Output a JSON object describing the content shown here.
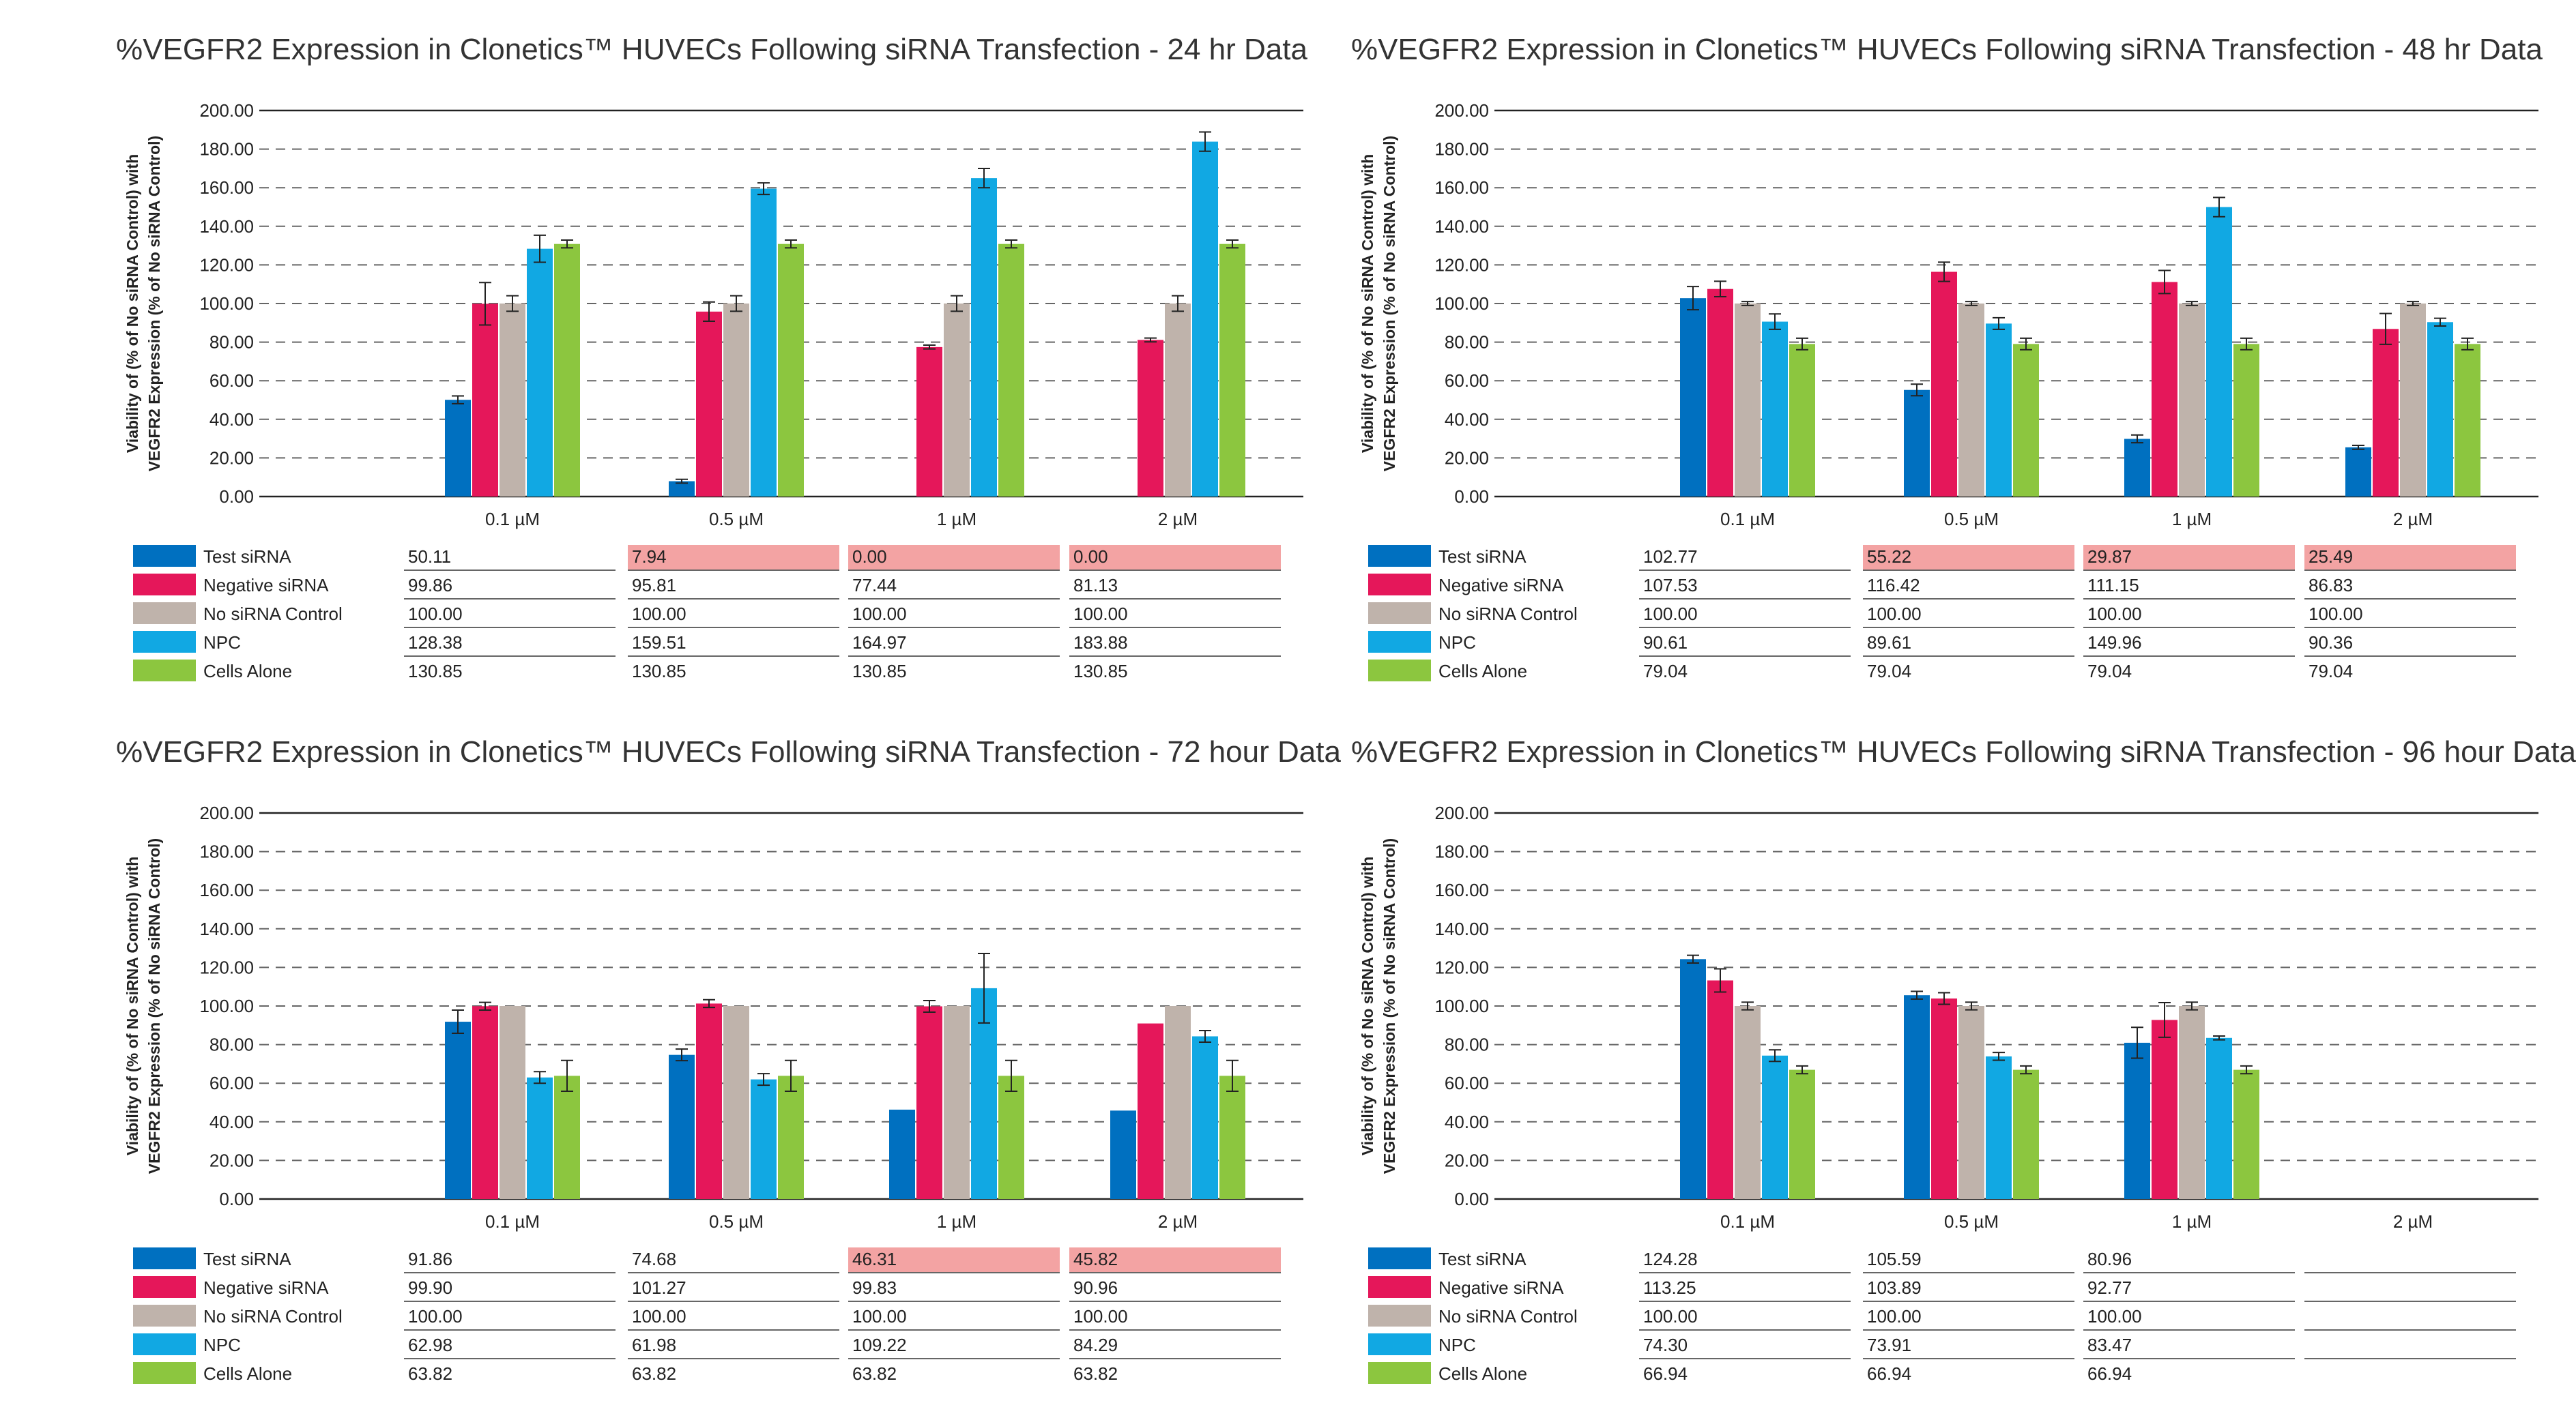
{
  "categories": [
    "0.1 µM",
    "0.5 µM",
    "1 µM",
    "2 µM"
  ],
  "series_names": [
    "Test siRNA",
    "Negative siRNA",
    "No siRNA Control",
    "NPC",
    "Cells Alone"
  ],
  "colors": {
    "Test siRNA": "#0070c0",
    "Negative siRNA": "#e5175a",
    "No siRNA Control": "#bfb3ab",
    "NPC": "#11a8e3",
    "Cells Alone": "#8cc63f",
    "highlight": "#f3a3a3",
    "grid": "#666666"
  },
  "y_axis_title": [
    "Viability of (% of No siRNA Control) with",
    "VEGFR2 Expression (% of No siRNA Control)"
  ],
  "y_ticks": [
    "0.00",
    "20.00",
    "40.00",
    "60.00",
    "80.00",
    "100.00",
    "120.00",
    "140.00",
    "160.00",
    "180.00",
    "200.00"
  ],
  "chart_data": [
    {
      "type": "bar",
      "title": "%VEGFR2 Expression in Clonetics™ HUVECs Following siRNA Transfection - 24 hr Data",
      "categories": [
        "0.1 µM",
        "0.5 µM",
        "1 µM",
        "2 µM"
      ],
      "ylim": [
        0,
        200
      ],
      "grid": true,
      "series": [
        {
          "name": "Test siRNA",
          "values": [
            50.11,
            7.94,
            0.0,
            0.0
          ],
          "err": [
            2,
            1,
            0,
            0
          ],
          "labels": [
            "50.11",
            "7.94",
            "0.00",
            "0.00"
          ]
        },
        {
          "name": "Negative siRNA",
          "values": [
            99.86,
            95.81,
            77.44,
            81.13
          ],
          "err": [
            11,
            5,
            1,
            1
          ],
          "labels": [
            "99.86",
            "95.81",
            "77.44",
            "81.13"
          ]
        },
        {
          "name": "No siRNA Control",
          "values": [
            100.0,
            100.0,
            100.0,
            100.0
          ],
          "err": [
            4,
            4,
            4,
            4
          ],
          "labels": [
            "100.00",
            "100.00",
            "100.00",
            "100.00"
          ]
        },
        {
          "name": "NPC",
          "values": [
            128.38,
            159.51,
            164.97,
            183.88
          ],
          "err": [
            7,
            3,
            5,
            5
          ],
          "labels": [
            "128.38",
            "159.51",
            "164.97",
            "183.88"
          ]
        },
        {
          "name": "Cells Alone",
          "values": [
            130.85,
            130.85,
            130.85,
            130.85
          ],
          "err": [
            2,
            2,
            2,
            2
          ],
          "labels": [
            "130.85",
            "130.85",
            "130.85",
            "130.85"
          ]
        }
      ],
      "highlight": [
        [
          false,
          true,
          true,
          true
        ],
        [
          false,
          false,
          false,
          false
        ],
        [
          false,
          false,
          false,
          false
        ],
        [
          false,
          false,
          false,
          false
        ],
        [
          false,
          false,
          false,
          false
        ]
      ]
    },
    {
      "type": "bar",
      "title": "%VEGFR2 Expression in Clonetics™ HUVECs Following siRNA Transfection - 48 hr Data",
      "categories": [
        "0.1 µM",
        "0.5 µM",
        "1 µM",
        "2 µM"
      ],
      "ylim": [
        0,
        200
      ],
      "grid": true,
      "series": [
        {
          "name": "Test siRNA",
          "values": [
            102.77,
            55.22,
            29.87,
            25.49
          ],
          "err": [
            6,
            3,
            2,
            1
          ],
          "labels": [
            "102.77",
            "55.22",
            "29.87",
            "25.49"
          ]
        },
        {
          "name": "Negative siRNA",
          "values": [
            107.53,
            116.42,
            111.15,
            86.83
          ],
          "err": [
            4,
            5,
            6,
            8
          ],
          "labels": [
            "107.53",
            "116.42",
            "111.15",
            "86.83"
          ]
        },
        {
          "name": "No siRNA Control",
          "values": [
            100.0,
            100.0,
            100.0,
            100.0
          ],
          "err": [
            1,
            1,
            1,
            1
          ],
          "labels": [
            "100.00",
            "100.00",
            "100.00",
            "100.00"
          ]
        },
        {
          "name": "NPC",
          "values": [
            90.61,
            89.61,
            149.96,
            90.36
          ],
          "err": [
            4,
            3,
            5,
            2
          ],
          "labels": [
            "90.61",
            "89.61",
            "149.96",
            "90.36"
          ]
        },
        {
          "name": "Cells Alone",
          "values": [
            79.04,
            79.04,
            79.04,
            79.04
          ],
          "err": [
            3,
            3,
            3,
            3
          ],
          "labels": [
            "79.04",
            "79.04",
            "79.04",
            "79.04"
          ]
        }
      ],
      "highlight": [
        [
          false,
          true,
          true,
          true
        ],
        [
          false,
          false,
          false,
          false
        ],
        [
          false,
          false,
          false,
          false
        ],
        [
          false,
          false,
          false,
          false
        ],
        [
          false,
          false,
          false,
          false
        ]
      ]
    },
    {
      "type": "bar",
      "title": "%VEGFR2 Expression in Clonetics™ HUVECs Following siRNA Transfection - 72 hour Data",
      "categories": [
        "0.1 µM",
        "0.5 µM",
        "1 µM",
        "2 µM"
      ],
      "ylim": [
        0,
        200
      ],
      "grid": true,
      "series": [
        {
          "name": "Test siRNA",
          "values": [
            91.86,
            74.68,
            46.31,
            45.82
          ],
          "err": [
            6,
            3,
            0,
            0
          ],
          "labels": [
            "91.86",
            "74.68",
            "46.31",
            "45.82"
          ]
        },
        {
          "name": "Negative siRNA",
          "values": [
            99.9,
            101.27,
            99.83,
            90.96
          ],
          "err": [
            2,
            2,
            3,
            0
          ],
          "labels": [
            "99.90",
            "101.27",
            "99.83",
            "90.96"
          ]
        },
        {
          "name": "No siRNA Control",
          "values": [
            100.0,
            100.0,
            100.0,
            100.0
          ],
          "err": [
            0,
            0,
            0,
            0
          ],
          "labels": [
            "100.00",
            "100.00",
            "100.00",
            "100.00"
          ]
        },
        {
          "name": "NPC",
          "values": [
            62.98,
            61.98,
            109.22,
            84.29
          ],
          "err": [
            3,
            3,
            18,
            3
          ],
          "labels": [
            "62.98",
            "61.98",
            "109.22",
            "84.29"
          ]
        },
        {
          "name": "Cells Alone",
          "values": [
            63.82,
            63.82,
            63.82,
            63.82
          ],
          "err": [
            8,
            8,
            8,
            8
          ],
          "labels": [
            "63.82",
            "63.82",
            "63.82",
            "63.82"
          ]
        }
      ],
      "highlight": [
        [
          false,
          false,
          true,
          true
        ],
        [
          false,
          false,
          false,
          false
        ],
        [
          false,
          false,
          false,
          false
        ],
        [
          false,
          false,
          false,
          false
        ],
        [
          false,
          false,
          false,
          false
        ]
      ]
    },
    {
      "type": "bar",
      "title": "%VEGFR2 Expression in Clonetics™ HUVECs Following siRNA Transfection - 96 hour Data",
      "categories": [
        "0.1 µM",
        "0.5 µM",
        "1 µM",
        "2 µM"
      ],
      "ylim": [
        0,
        200
      ],
      "grid": true,
      "series": [
        {
          "name": "Test siRNA",
          "values": [
            124.28,
            105.59,
            80.96,
            null
          ],
          "err": [
            2,
            2,
            8,
            0
          ],
          "labels": [
            "124.28",
            "105.59",
            "80.96",
            ""
          ]
        },
        {
          "name": "Negative siRNA",
          "values": [
            113.25,
            103.89,
            92.77,
            null
          ],
          "err": [
            6,
            3,
            9,
            0
          ],
          "labels": [
            "113.25",
            "103.89",
            "92.77",
            ""
          ]
        },
        {
          "name": "No siRNA Control",
          "values": [
            100.0,
            100.0,
            100.0,
            null
          ],
          "err": [
            2,
            2,
            2,
            0
          ],
          "labels": [
            "100.00",
            "100.00",
            "100.00",
            ""
          ]
        },
        {
          "name": "NPC",
          "values": [
            74.3,
            73.91,
            83.47,
            null
          ],
          "err": [
            3,
            2,
            1,
            0
          ],
          "labels": [
            "74.30",
            "73.91",
            "83.47",
            ""
          ]
        },
        {
          "name": "Cells Alone",
          "values": [
            66.94,
            66.94,
            66.94,
            null
          ],
          "err": [
            2,
            2,
            2,
            0
          ],
          "labels": [
            "66.94",
            "66.94",
            "66.94",
            ""
          ]
        }
      ],
      "highlight": [
        [
          false,
          false,
          false,
          false
        ],
        [
          false,
          false,
          false,
          false
        ],
        [
          false,
          false,
          false,
          false
        ],
        [
          false,
          false,
          false,
          false
        ],
        [
          false,
          false,
          false,
          false
        ]
      ]
    }
  ]
}
